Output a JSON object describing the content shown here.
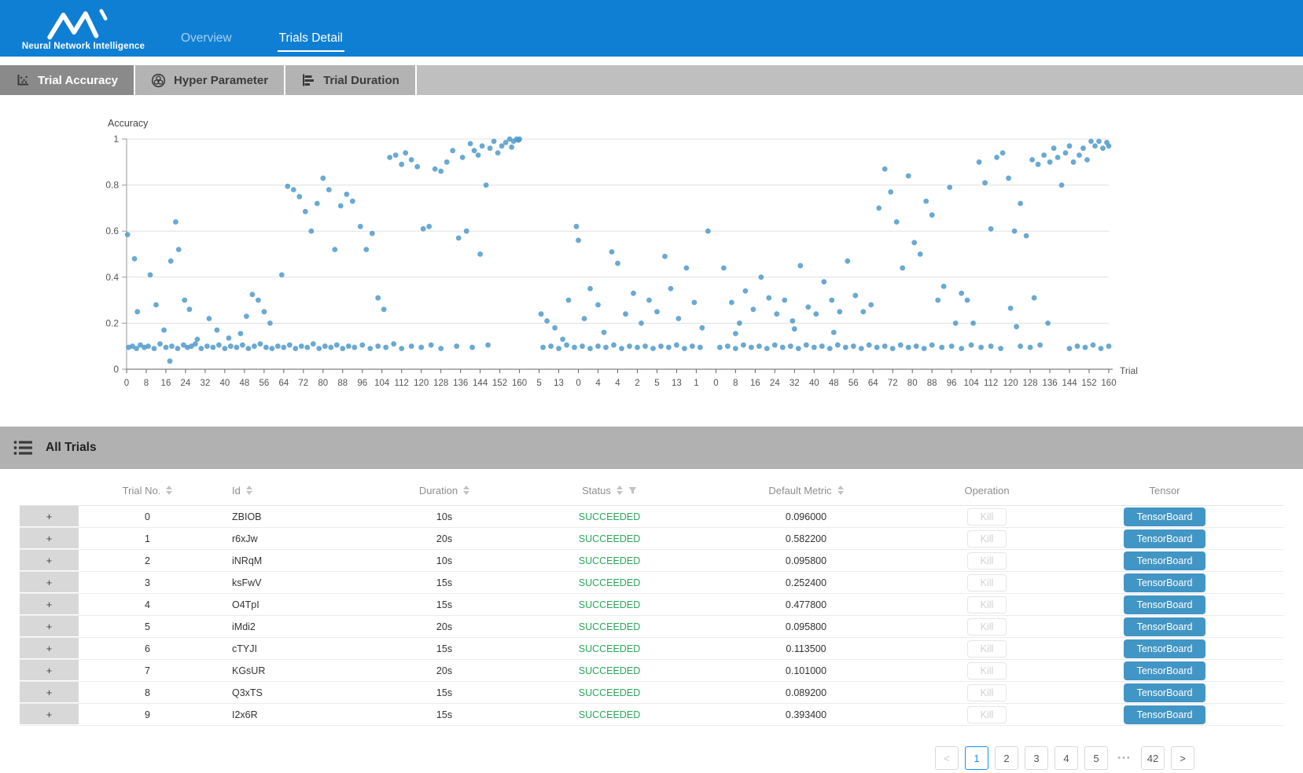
{
  "header": {
    "brand": "Neural Network Intelligence",
    "nav": [
      {
        "label": "Overview",
        "active": false
      },
      {
        "label": "Trials Detail",
        "active": true
      }
    ]
  },
  "toolbar": {
    "tabs": [
      {
        "label": "Trial Accuracy",
        "active": true
      },
      {
        "label": "Hyper Parameter",
        "active": false
      },
      {
        "label": "Trial Duration",
        "active": false
      }
    ]
  },
  "chart_data": {
    "type": "scatter",
    "title": "Accuracy",
    "xlabel": "Trial",
    "ylabel": "Accuracy",
    "ylim": [
      0,
      1
    ],
    "y_ticks": [
      0,
      0.2,
      0.4,
      0.6,
      0.8,
      1
    ],
    "grid": "horizontal",
    "legend": "none",
    "point_color": "#4f9aca",
    "x_encoding": "tick_index_0_to_50",
    "x_tick_labels": [
      "0",
      "8",
      "16",
      "24",
      "32",
      "40",
      "48",
      "56",
      "64",
      "72",
      "80",
      "88",
      "96",
      "104",
      "112",
      "120",
      "128",
      "136",
      "144",
      "152",
      "160",
      "5",
      "13",
      "0",
      "4",
      "4",
      "2",
      "5",
      "13",
      "1",
      "0",
      "8",
      "16",
      "24",
      "32",
      "40",
      "48",
      "56",
      "64",
      "72",
      "80",
      "88",
      "96",
      "104",
      "112",
      "120",
      "128",
      "136",
      "144",
      "152",
      "160"
    ],
    "points": [
      [
        0.1,
        0.095
      ],
      [
        0.3,
        0.1
      ],
      [
        0.5,
        0.09
      ],
      [
        0.7,
        0.105
      ],
      [
        0.9,
        0.095
      ],
      [
        1.1,
        0.1
      ],
      [
        1.4,
        0.09
      ],
      [
        1.7,
        0.11
      ],
      [
        2.0,
        0.095
      ],
      [
        2.3,
        0.1
      ],
      [
        2.6,
        0.09
      ],
      [
        2.9,
        0.105
      ],
      [
        3.1,
        0.095
      ],
      [
        3.3,
        0.1
      ],
      [
        3.5,
        0.11
      ],
      [
        3.8,
        0.09
      ],
      [
        4.1,
        0.1
      ],
      [
        4.4,
        0.095
      ],
      [
        4.7,
        0.105
      ],
      [
        5.0,
        0.09
      ],
      [
        5.3,
        0.1
      ],
      [
        5.6,
        0.095
      ],
      [
        5.9,
        0.105
      ],
      [
        6.2,
        0.09
      ],
      [
        6.5,
        0.1
      ],
      [
        6.8,
        0.11
      ],
      [
        7.1,
        0.095
      ],
      [
        7.4,
        0.09
      ],
      [
        7.7,
        0.1
      ],
      [
        8.0,
        0.095
      ],
      [
        8.3,
        0.105
      ],
      [
        8.6,
        0.09
      ],
      [
        8.9,
        0.1
      ],
      [
        9.2,
        0.095
      ],
      [
        9.5,
        0.11
      ],
      [
        9.8,
        0.09
      ],
      [
        10.1,
        0.1
      ],
      [
        10.4,
        0.095
      ],
      [
        10.7,
        0.105
      ],
      [
        11.0,
        0.09
      ],
      [
        11.3,
        0.1
      ],
      [
        11.6,
        0.095
      ],
      [
        12.0,
        0.105
      ],
      [
        12.4,
        0.09
      ],
      [
        12.8,
        0.1
      ],
      [
        13.2,
        0.095
      ],
      [
        13.6,
        0.11
      ],
      [
        14.0,
        0.09
      ],
      [
        14.5,
        0.1
      ],
      [
        15.0,
        0.095
      ],
      [
        15.5,
        0.105
      ],
      [
        16.0,
        0.09
      ],
      [
        16.8,
        0.1
      ],
      [
        17.6,
        0.095
      ],
      [
        18.4,
        0.105
      ],
      [
        2.2,
        0.035
      ],
      [
        0.05,
        0.585
      ],
      [
        0.4,
        0.48
      ],
      [
        0.55,
        0.25
      ],
      [
        1.2,
        0.41
      ],
      [
        1.5,
        0.28
      ],
      [
        1.9,
        0.17
      ],
      [
        2.25,
        0.47
      ],
      [
        2.5,
        0.64
      ],
      [
        2.65,
        0.52
      ],
      [
        2.95,
        0.3
      ],
      [
        3.2,
        0.26
      ],
      [
        3.6,
        0.13
      ],
      [
        4.2,
        0.22
      ],
      [
        4.6,
        0.17
      ],
      [
        5.2,
        0.135
      ],
      [
        5.8,
        0.155
      ],
      [
        6.1,
        0.23
      ],
      [
        6.4,
        0.325
      ],
      [
        6.7,
        0.3
      ],
      [
        7.0,
        0.25
      ],
      [
        7.3,
        0.2
      ],
      [
        7.9,
        0.41
      ],
      [
        8.2,
        0.795
      ],
      [
        8.5,
        0.78
      ],
      [
        8.8,
        0.75
      ],
      [
        9.1,
        0.685
      ],
      [
        9.4,
        0.6
      ],
      [
        9.7,
        0.72
      ],
      [
        10.0,
        0.83
      ],
      [
        10.3,
        0.78
      ],
      [
        10.6,
        0.52
      ],
      [
        10.9,
        0.71
      ],
      [
        11.2,
        0.76
      ],
      [
        11.5,
        0.73
      ],
      [
        11.9,
        0.62
      ],
      [
        12.2,
        0.52
      ],
      [
        12.5,
        0.59
      ],
      [
        12.8,
        0.31
      ],
      [
        13.1,
        0.26
      ],
      [
        13.4,
        0.92
      ],
      [
        13.7,
        0.93
      ],
      [
        14.0,
        0.89
      ],
      [
        14.2,
        0.94
      ],
      [
        14.5,
        0.91
      ],
      [
        14.8,
        0.88
      ],
      [
        15.1,
        0.61
      ],
      [
        15.4,
        0.62
      ],
      [
        15.7,
        0.87
      ],
      [
        16.0,
        0.86
      ],
      [
        16.3,
        0.9
      ],
      [
        16.6,
        0.95
      ],
      [
        16.9,
        0.57
      ],
      [
        17.1,
        0.92
      ],
      [
        17.3,
        0.6
      ],
      [
        17.5,
        0.98
      ],
      [
        17.7,
        0.95
      ],
      [
        17.9,
        0.93
      ],
      [
        18.0,
        0.5
      ],
      [
        18.1,
        0.97
      ],
      [
        18.3,
        0.8
      ],
      [
        18.5,
        0.96
      ],
      [
        18.7,
        0.99
      ],
      [
        18.9,
        0.94
      ],
      [
        19.1,
        0.97
      ],
      [
        19.3,
        0.985
      ],
      [
        19.5,
        1.0
      ],
      [
        19.6,
        0.965
      ],
      [
        19.7,
        0.99
      ],
      [
        19.85,
        1.0
      ],
      [
        19.95,
        0.995
      ],
      [
        20.0,
        1.0
      ],
      [
        21.2,
        0.095
      ],
      [
        21.6,
        0.1
      ],
      [
        22.0,
        0.09
      ],
      [
        22.4,
        0.105
      ],
      [
        22.8,
        0.095
      ],
      [
        23.2,
        0.1
      ],
      [
        23.6,
        0.09
      ],
      [
        24.0,
        0.1
      ],
      [
        24.4,
        0.095
      ],
      [
        24.8,
        0.105
      ],
      [
        25.2,
        0.09
      ],
      [
        25.6,
        0.1
      ],
      [
        26.0,
        0.095
      ],
      [
        26.4,
        0.1
      ],
      [
        26.8,
        0.09
      ],
      [
        27.2,
        0.1
      ],
      [
        27.6,
        0.095
      ],
      [
        28.0,
        0.105
      ],
      [
        28.4,
        0.09
      ],
      [
        28.8,
        0.1
      ],
      [
        29.2,
        0.095
      ],
      [
        21.1,
        0.24
      ],
      [
        21.4,
        0.21
      ],
      [
        21.8,
        0.18
      ],
      [
        22.2,
        0.13
      ],
      [
        22.5,
        0.3
      ],
      [
        22.9,
        0.62
      ],
      [
        23.0,
        0.56
      ],
      [
        23.3,
        0.22
      ],
      [
        23.6,
        0.35
      ],
      [
        24.0,
        0.28
      ],
      [
        24.3,
        0.16
      ],
      [
        24.7,
        0.51
      ],
      [
        25.0,
        0.46
      ],
      [
        25.4,
        0.24
      ],
      [
        25.8,
        0.33
      ],
      [
        26.2,
        0.2
      ],
      [
        26.6,
        0.3
      ],
      [
        27.0,
        0.25
      ],
      [
        27.4,
        0.49
      ],
      [
        27.7,
        0.35
      ],
      [
        28.1,
        0.22
      ],
      [
        28.5,
        0.44
      ],
      [
        28.9,
        0.29
      ],
      [
        29.3,
        0.18
      ],
      [
        30.2,
        0.095
      ],
      [
        30.6,
        0.1
      ],
      [
        31.0,
        0.09
      ],
      [
        31.4,
        0.105
      ],
      [
        31.8,
        0.095
      ],
      [
        32.2,
        0.1
      ],
      [
        32.6,
        0.09
      ],
      [
        33.0,
        0.105
      ],
      [
        33.4,
        0.095
      ],
      [
        33.8,
        0.1
      ],
      [
        34.2,
        0.09
      ],
      [
        34.6,
        0.105
      ],
      [
        35.0,
        0.095
      ],
      [
        35.4,
        0.1
      ],
      [
        35.8,
        0.09
      ],
      [
        36.2,
        0.105
      ],
      [
        36.6,
        0.095
      ],
      [
        37.0,
        0.1
      ],
      [
        37.4,
        0.09
      ],
      [
        37.8,
        0.105
      ],
      [
        38.2,
        0.095
      ],
      [
        38.6,
        0.1
      ],
      [
        39.0,
        0.09
      ],
      [
        39.4,
        0.105
      ],
      [
        39.8,
        0.095
      ],
      [
        40.2,
        0.1
      ],
      [
        40.6,
        0.09
      ],
      [
        41.0,
        0.105
      ],
      [
        41.5,
        0.095
      ],
      [
        42.0,
        0.1
      ],
      [
        42.5,
        0.09
      ],
      [
        43.0,
        0.105
      ],
      [
        43.5,
        0.095
      ],
      [
        44.0,
        0.1
      ],
      [
        44.5,
        0.09
      ],
      [
        45.5,
        0.1
      ],
      [
        46.0,
        0.095
      ],
      [
        46.5,
        0.105
      ],
      [
        48.0,
        0.09
      ],
      [
        48.4,
        0.1
      ],
      [
        48.8,
        0.095
      ],
      [
        49.2,
        0.105
      ],
      [
        49.6,
        0.09
      ],
      [
        50.0,
        0.1
      ],
      [
        29.6,
        0.6
      ],
      [
        30.4,
        0.44
      ],
      [
        30.8,
        0.29
      ],
      [
        31.0,
        0.155
      ],
      [
        31.2,
        0.2
      ],
      [
        31.5,
        0.34
      ],
      [
        31.9,
        0.26
      ],
      [
        32.3,
        0.4
      ],
      [
        32.7,
        0.31
      ],
      [
        33.1,
        0.24
      ],
      [
        33.5,
        0.3
      ],
      [
        33.9,
        0.21
      ],
      [
        34.0,
        0.175
      ],
      [
        34.3,
        0.45
      ],
      [
        34.7,
        0.27
      ],
      [
        35.1,
        0.24
      ],
      [
        35.5,
        0.38
      ],
      [
        35.9,
        0.3
      ],
      [
        36.0,
        0.16
      ],
      [
        36.3,
        0.25
      ],
      [
        36.7,
        0.47
      ],
      [
        37.1,
        0.32
      ],
      [
        37.5,
        0.25
      ],
      [
        37.9,
        0.28
      ],
      [
        38.3,
        0.7
      ],
      [
        38.6,
        0.87
      ],
      [
        38.9,
        0.77
      ],
      [
        39.2,
        0.64
      ],
      [
        39.5,
        0.44
      ],
      [
        39.8,
        0.84
      ],
      [
        40.1,
        0.55
      ],
      [
        40.4,
        0.5
      ],
      [
        40.7,
        0.73
      ],
      [
        41.0,
        0.67
      ],
      [
        41.3,
        0.3
      ],
      [
        41.6,
        0.36
      ],
      [
        41.9,
        0.79
      ],
      [
        42.2,
        0.2
      ],
      [
        42.5,
        0.33
      ],
      [
        42.8,
        0.3
      ],
      [
        43.1,
        0.2
      ],
      [
        43.4,
        0.9
      ],
      [
        43.7,
        0.81
      ],
      [
        44.0,
        0.61
      ],
      [
        44.3,
        0.92
      ],
      [
        44.6,
        0.94
      ],
      [
        44.9,
        0.83
      ],
      [
        45.0,
        0.265
      ],
      [
        45.2,
        0.6
      ],
      [
        45.3,
        0.185
      ],
      [
        45.5,
        0.72
      ],
      [
        45.8,
        0.58
      ],
      [
        46.1,
        0.91
      ],
      [
        46.2,
        0.31
      ],
      [
        46.4,
        0.89
      ],
      [
        46.7,
        0.93
      ],
      [
        46.9,
        0.2
      ],
      [
        47.0,
        0.9
      ],
      [
        47.2,
        0.96
      ],
      [
        47.4,
        0.92
      ],
      [
        47.6,
        0.8
      ],
      [
        47.8,
        0.94
      ],
      [
        48.0,
        0.97
      ],
      [
        48.2,
        0.9
      ],
      [
        48.5,
        0.93
      ],
      [
        48.7,
        0.96
      ],
      [
        48.9,
        0.91
      ],
      [
        49.1,
        0.99
      ],
      [
        49.3,
        0.97
      ],
      [
        49.5,
        0.99
      ],
      [
        49.7,
        0.96
      ],
      [
        49.9,
        0.985
      ],
      [
        50.0,
        0.97
      ]
    ]
  },
  "table": {
    "section_title": "All Trials",
    "expand_symbol": "+",
    "kill_label": "Kill",
    "tensorboard_label": "TensorBoard",
    "status_color": "#2aa65a",
    "columns": [
      {
        "label": "Trial No.",
        "sorter": true,
        "filter": false
      },
      {
        "label": "Id",
        "sorter": true,
        "filter": false
      },
      {
        "label": "Duration",
        "sorter": true,
        "filter": false
      },
      {
        "label": "Status",
        "sorter": true,
        "filter": true
      },
      {
        "label": "Default Metric",
        "sorter": true,
        "filter": false
      },
      {
        "label": "Operation",
        "sorter": false,
        "filter": false
      },
      {
        "label": "Tensor",
        "sorter": false,
        "filter": false
      }
    ],
    "rows": [
      {
        "no": "0",
        "id": "ZBIOB",
        "duration": "10s",
        "status": "SUCCEEDED",
        "metric": "0.096000"
      },
      {
        "no": "1",
        "id": "r6xJw",
        "duration": "20s",
        "status": "SUCCEEDED",
        "metric": "0.582200"
      },
      {
        "no": "2",
        "id": "iNRqM",
        "duration": "10s",
        "status": "SUCCEEDED",
        "metric": "0.095800"
      },
      {
        "no": "3",
        "id": "ksFwV",
        "duration": "15s",
        "status": "SUCCEEDED",
        "metric": "0.252400"
      },
      {
        "no": "4",
        "id": "O4TpI",
        "duration": "15s",
        "status": "SUCCEEDED",
        "metric": "0.477800"
      },
      {
        "no": "5",
        "id": "iMdi2",
        "duration": "20s",
        "status": "SUCCEEDED",
        "metric": "0.095800"
      },
      {
        "no": "6",
        "id": "cTYJI",
        "duration": "15s",
        "status": "SUCCEEDED",
        "metric": "0.113500"
      },
      {
        "no": "7",
        "id": "KGsUR",
        "duration": "20s",
        "status": "SUCCEEDED",
        "metric": "0.101000"
      },
      {
        "no": "8",
        "id": "Q3xTS",
        "duration": "15s",
        "status": "SUCCEEDED",
        "metric": "0.089200"
      },
      {
        "no": "9",
        "id": "I2x6R",
        "duration": "15s",
        "status": "SUCCEEDED",
        "metric": "0.393400"
      }
    ]
  },
  "pagination": {
    "prev_label": "<",
    "next_label": ">",
    "items": [
      "1",
      "2",
      "3",
      "4",
      "5",
      "•••",
      "42"
    ],
    "current": "1"
  },
  "colors": {
    "nav_bg": "#0f7fd4",
    "accent_blue": "#1890ff",
    "point": "#4f9aca",
    "status_succeeded": "#2aa65a",
    "tensorboard_bg": "#4296c5"
  }
}
